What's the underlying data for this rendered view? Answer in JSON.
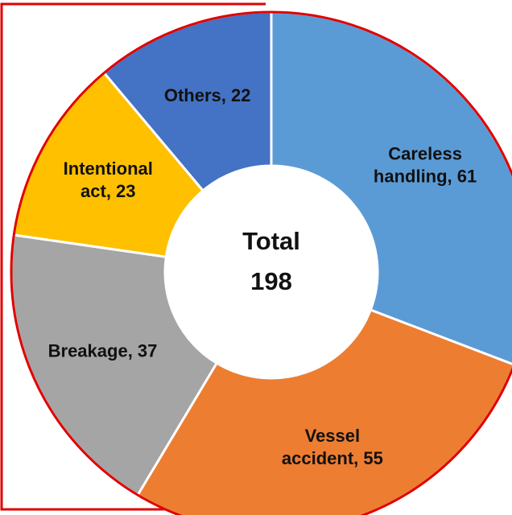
{
  "chart_data": {
    "type": "donut",
    "values": [
      61,
      55,
      37,
      23,
      22
    ],
    "value_labels": [
      "Careless handling, 61",
      "Vessel accident, 55",
      "Breakage, 37",
      "Intentional act, 23",
      "Others, 22"
    ],
    "colors": [
      "#5b9bd5",
      "#ed7d31",
      "#a5a5a5",
      "#ffc000",
      "#4472c4"
    ],
    "center_label": "Total",
    "total": 198
  }
}
